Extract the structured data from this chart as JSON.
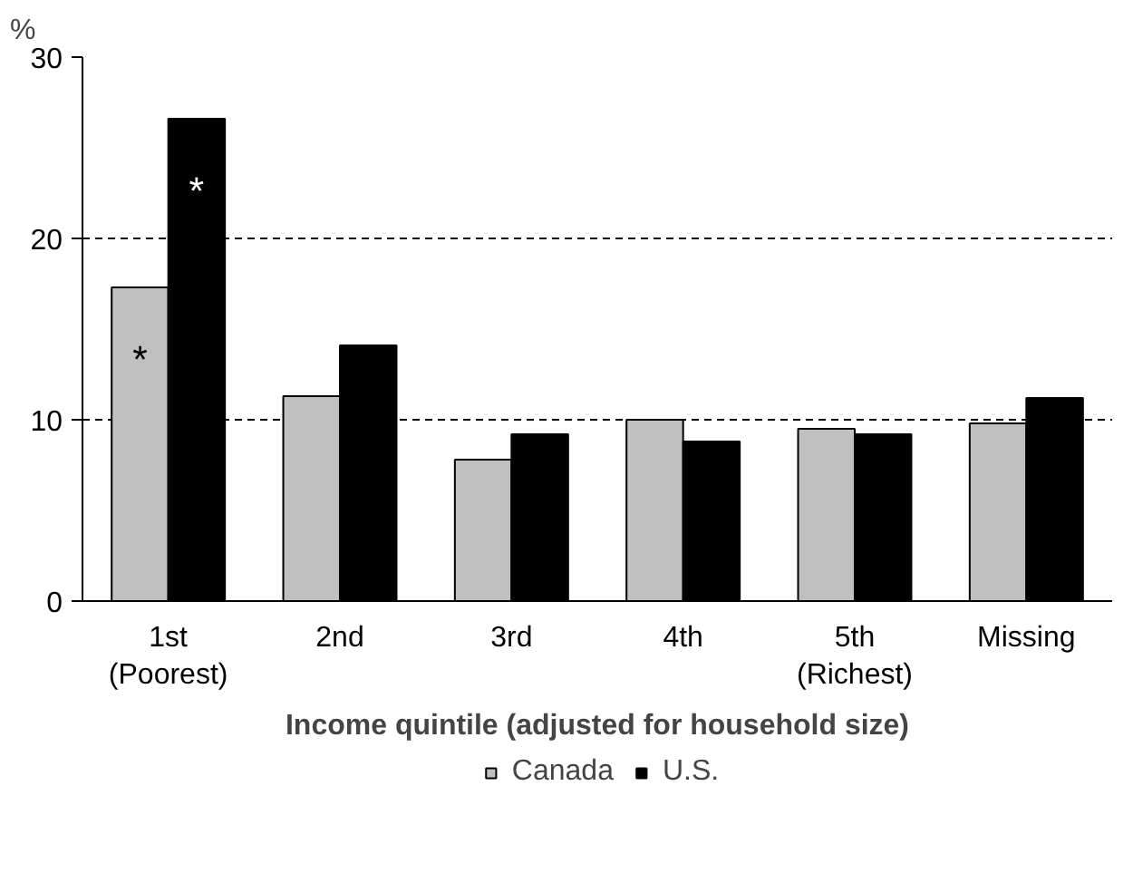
{
  "chart_data": {
    "type": "bar",
    "ylabel": "%",
    "xlabel": "Income quintile (adjusted for household size)",
    "categories": [
      "1st\n(Poorest)",
      "2nd",
      "3rd",
      "4th",
      "5th\n(Richest)",
      "Missing"
    ],
    "series": [
      {
        "name": "Canada",
        "color": "#c0c0c0",
        "values": [
          17.3,
          11.3,
          7.8,
          10.0,
          9.5,
          9.8
        ],
        "value_labels": [
          "*",
          null,
          null,
          null,
          null,
          null
        ]
      },
      {
        "name": "U.S.",
        "color": "#000000",
        "values": [
          26.6,
          14.1,
          9.2,
          8.8,
          9.2,
          11.2
        ],
        "value_labels": [
          "*",
          null,
          null,
          null,
          null,
          null
        ]
      }
    ],
    "ylim": [
      0,
      30
    ],
    "yticks": [
      0,
      10,
      20,
      30
    ],
    "grid": "y",
    "legend": "bottom"
  }
}
